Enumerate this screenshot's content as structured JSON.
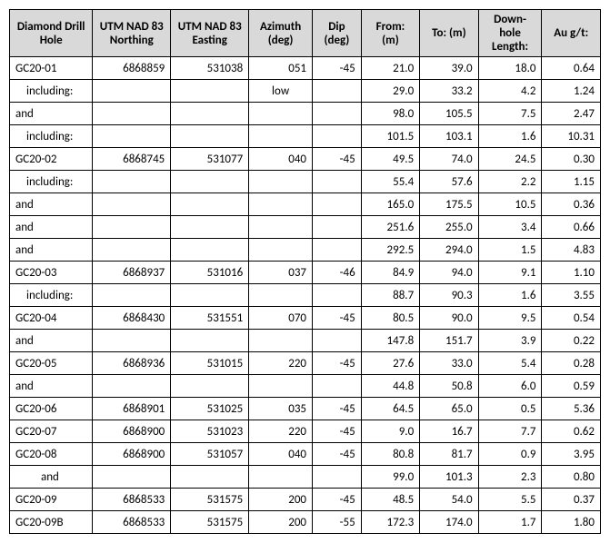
{
  "table": {
    "headers": {
      "c0": "Diamond Drill Hole",
      "c1": "UTM NAD 83 Northing",
      "c2": "UTM NAD 83 Easting",
      "c3": "Azimuth (deg)",
      "c4": "Dip (deg)",
      "c5": "From: (m)",
      "c6": "To: (m)",
      "c7": "Down-hole Length:",
      "c8": "Au g/t:"
    },
    "col_widths": [
      "85",
      "80",
      "80",
      "65",
      "50",
      "60",
      "60",
      "65",
      "60"
    ],
    "header_bg": "#d9d9d9",
    "border_color": "#000000",
    "font_family": "Calibri, Arial, sans-serif",
    "font_size_pt": 10,
    "rows": [
      {
        "label": "GC20-01",
        "northing": "6868859",
        "easting": "531038",
        "az": "051",
        "dip": "-45",
        "from": "21.0",
        "to": "39.0",
        "len": "18.0",
        "au": "0.64"
      },
      {
        "label": "including:",
        "indent": 1,
        "az": "low",
        "from": "29.0",
        "to": "33.2",
        "len": "4.2",
        "au": "1.24"
      },
      {
        "label": "and",
        "from": "98.0",
        "to": "105.5",
        "len": "7.5",
        "au": "2.47"
      },
      {
        "label": "including:",
        "indent": 1,
        "from": "101.5",
        "to": "103.1",
        "len": "1.6",
        "au": "10.31"
      },
      {
        "label": "GC20-02",
        "northing": "6868745",
        "easting": "531077",
        "az": "040",
        "dip": "-45",
        "from": "49.5",
        "to": "74.0",
        "len": "24.5",
        "au": "0.30"
      },
      {
        "label": "including:",
        "indent": 1,
        "from": "55.4",
        "to": "57.6",
        "len": "2.2",
        "au": "1.15"
      },
      {
        "label": "and",
        "from": "165.0",
        "to": "175.5",
        "len": "10.5",
        "au": "0.36"
      },
      {
        "label": "and",
        "from": "251.6",
        "to": "255.0",
        "len": "3.4",
        "au": "0.66"
      },
      {
        "label": "and",
        "from": "292.5",
        "to": "294.0",
        "len": "1.5",
        "au": "4.83"
      },
      {
        "label": "GC20-03",
        "northing": "6868937",
        "easting": "531016",
        "az": "037",
        "dip": "-46",
        "from": "84.9",
        "to": "94.0",
        "len": "9.1",
        "au": "1.10"
      },
      {
        "label": "including:",
        "indent": 1,
        "from": "88.7",
        "to": "90.3",
        "len": "1.6",
        "au": "3.55"
      },
      {
        "label": "GC20-04",
        "northing": "6868430",
        "easting": "531551",
        "az": "070",
        "dip": "-45",
        "from": "80.5",
        "to": "90.0",
        "len": "9.5",
        "au": "0.54"
      },
      {
        "label": "and",
        "from": "147.8",
        "to": "151.7",
        "len": "3.9",
        "au": "0.22"
      },
      {
        "label": "GC20-05",
        "northing": "6868936",
        "easting": "531015",
        "az": "220",
        "dip": "-45",
        "from": "27.6",
        "to": "33.0",
        "len": "5.4",
        "au": "0.28"
      },
      {
        "label": "and",
        "from": "44.8",
        "to": "50.8",
        "len": "6.0",
        "au": "0.59"
      },
      {
        "label": "GC20-06",
        "northing": "6868901",
        "easting": "531025",
        "az": "035",
        "dip": "-45",
        "from": "64.5",
        "to": "65.0",
        "len": "0.5",
        "au": "5.36"
      },
      {
        "label": "GC20-07",
        "northing": "6868900",
        "easting": "531023",
        "az": "220",
        "dip": "-45",
        "from": "9.0",
        "to": "16.7",
        "len": "7.7",
        "au": "0.62"
      },
      {
        "label": "GC20-08",
        "northing": "6868900",
        "easting": "531057",
        "az": "040",
        "dip": "-45",
        "from": "80.8",
        "to": "81.7",
        "len": "0.9",
        "au": "3.95"
      },
      {
        "label": "and",
        "indent": 2,
        "from": "99.0",
        "to": "101.3",
        "len": "2.3",
        "au": "0.80"
      },
      {
        "label": "GC20-09",
        "northing": "6868533",
        "easting": "531575",
        "az": "200",
        "dip": "-45",
        "from": "48.5",
        "to": "54.0",
        "len": "5.5",
        "au": "0.37"
      },
      {
        "label": "GC20-09B",
        "northing": "6868533",
        "easting": "531575",
        "az": "200",
        "dip": "-55",
        "from": "172.3",
        "to": "174.0",
        "len": "1.7",
        "au": "1.80"
      }
    ]
  }
}
